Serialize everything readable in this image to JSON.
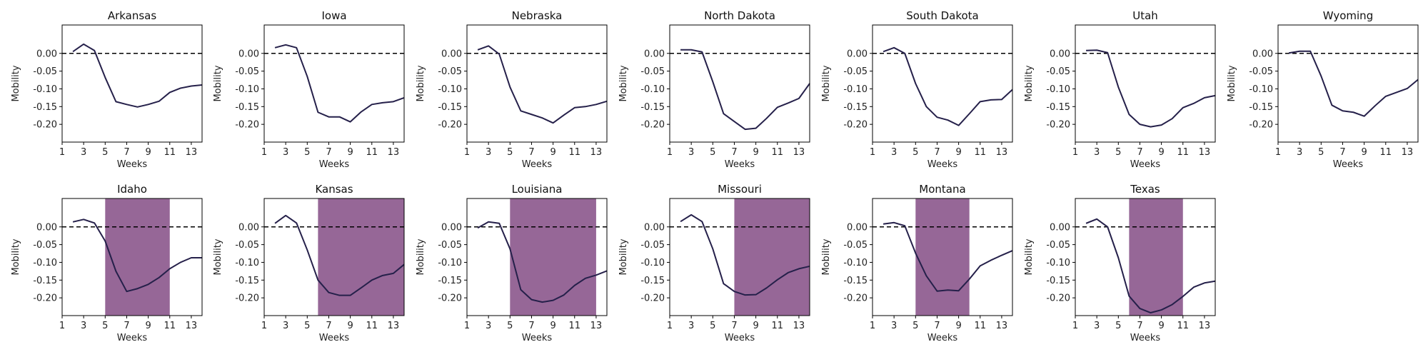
{
  "chart_data": {
    "type": "line",
    "layout": "small-multiples",
    "colors": {
      "line": "#25204a",
      "shade": "#7f4680",
      "reference_line": "#000000"
    },
    "shared_axes": {
      "xlabel": "Weeks",
      "ylabel": "Mobility",
      "xlim": [
        1,
        14
      ],
      "ylim": [
        -0.25,
        0.08
      ],
      "xticks": [
        1,
        3,
        5,
        7,
        9,
        11,
        13
      ],
      "xtick_labels": [
        "1",
        "3",
        "5",
        "7",
        "9",
        "11",
        "13"
      ],
      "yticks": [
        0.0,
        -0.05,
        -0.1,
        -0.15,
        -0.2
      ],
      "ytick_labels": [
        "0.00",
        "-0.05",
        "-0.10",
        "-0.15",
        "-0.20"
      ],
      "reference_y": 0.0,
      "grid": false
    },
    "panels": [
      {
        "title": "Arkansas",
        "x": [
          2,
          3,
          4,
          5,
          6,
          7,
          8,
          9,
          10,
          11,
          12,
          13,
          14
        ],
        "y": [
          0.005,
          0.026,
          0.008,
          -0.068,
          -0.136,
          -0.144,
          -0.151,
          -0.144,
          -0.135,
          -0.11,
          -0.098,
          -0.092,
          -0.089
        ],
        "shade": null
      },
      {
        "title": "Iowa",
        "x": [
          2,
          3,
          4,
          5,
          6,
          7,
          8,
          9,
          10,
          11,
          12,
          13,
          14
        ],
        "y": [
          0.016,
          0.024,
          0.016,
          -0.065,
          -0.166,
          -0.179,
          -0.179,
          -0.193,
          -0.165,
          -0.144,
          -0.139,
          -0.136,
          -0.125
        ],
        "shade": null
      },
      {
        "title": "Nebraska",
        "x": [
          2,
          3,
          4,
          5,
          6,
          7,
          8,
          9,
          10,
          11,
          12,
          13,
          14
        ],
        "y": [
          0.01,
          0.021,
          -0.002,
          -0.095,
          -0.162,
          -0.172,
          -0.182,
          -0.196,
          -0.174,
          -0.153,
          -0.15,
          -0.144,
          -0.135
        ],
        "shade": null
      },
      {
        "title": "North Dakota",
        "x": [
          2,
          3,
          4,
          5,
          6,
          7,
          8,
          9,
          10,
          11,
          12,
          13,
          14
        ],
        "y": [
          0.01,
          0.01,
          0.004,
          -0.08,
          -0.17,
          -0.192,
          -0.214,
          -0.211,
          -0.183,
          -0.152,
          -0.14,
          -0.127,
          -0.085
        ],
        "shade": null
      },
      {
        "title": "South Dakota",
        "x": [
          2,
          3,
          4,
          5,
          6,
          7,
          8,
          9,
          10,
          11,
          12,
          13,
          14
        ],
        "y": [
          0.005,
          0.016,
          0.0,
          -0.085,
          -0.15,
          -0.18,
          -0.188,
          -0.203,
          -0.17,
          -0.136,
          -0.131,
          -0.13,
          -0.102
        ],
        "shade": null
      },
      {
        "title": "Utah",
        "x": [
          2,
          3,
          4,
          5,
          6,
          7,
          8,
          9,
          10,
          11,
          12,
          13,
          14
        ],
        "y": [
          0.008,
          0.009,
          0.002,
          -0.095,
          -0.172,
          -0.2,
          -0.207,
          -0.202,
          -0.184,
          -0.153,
          -0.141,
          -0.125,
          -0.119
        ],
        "shade": null
      },
      {
        "title": "Wyoming",
        "x": [
          2,
          3,
          4,
          5,
          6,
          7,
          8,
          9,
          10,
          11,
          12,
          13,
          14
        ],
        "y": [
          0.001,
          0.006,
          0.006,
          -0.064,
          -0.146,
          -0.162,
          -0.166,
          -0.177,
          -0.148,
          -0.121,
          -0.11,
          -0.099,
          -0.074
        ],
        "shade": null
      },
      {
        "title": "Idaho",
        "x": [
          2,
          3,
          4,
          5,
          6,
          7,
          8,
          9,
          10,
          11,
          12,
          13,
          14
        ],
        "y": [
          0.014,
          0.021,
          0.011,
          -0.04,
          -0.125,
          -0.182,
          -0.174,
          -0.162,
          -0.143,
          -0.118,
          -0.1,
          -0.087,
          -0.087
        ],
        "shade": [
          5,
          11
        ]
      },
      {
        "title": "Kansas",
        "x": [
          2,
          3,
          4,
          5,
          6,
          7,
          8,
          9,
          10,
          11,
          12,
          13,
          14
        ],
        "y": [
          0.01,
          0.032,
          0.011,
          -0.065,
          -0.15,
          -0.185,
          -0.193,
          -0.193,
          -0.172,
          -0.15,
          -0.137,
          -0.131,
          -0.106
        ],
        "shade": [
          6,
          14
        ]
      },
      {
        "title": "Louisiana",
        "x": [
          2,
          3,
          4,
          5,
          6,
          7,
          8,
          9,
          10,
          11,
          12,
          13,
          14
        ],
        "y": [
          -0.003,
          0.014,
          0.01,
          -0.062,
          -0.177,
          -0.205,
          -0.212,
          -0.207,
          -0.192,
          -0.165,
          -0.145,
          -0.136,
          -0.124
        ],
        "shade": [
          5,
          13
        ]
      },
      {
        "title": "Missouri",
        "x": [
          2,
          3,
          4,
          5,
          6,
          7,
          8,
          9,
          10,
          11,
          12,
          13,
          14
        ],
        "y": [
          0.015,
          0.034,
          0.015,
          -0.062,
          -0.16,
          -0.182,
          -0.192,
          -0.191,
          -0.172,
          -0.149,
          -0.129,
          -0.118,
          -0.111
        ],
        "shade": [
          7,
          14
        ]
      },
      {
        "title": "Montana",
        "x": [
          2,
          3,
          4,
          5,
          6,
          7,
          8,
          9,
          10,
          11,
          12,
          13,
          14
        ],
        "y": [
          0.008,
          0.012,
          0.003,
          -0.074,
          -0.138,
          -0.181,
          -0.178,
          -0.18,
          -0.147,
          -0.11,
          -0.094,
          -0.08,
          -0.067
        ],
        "shade": [
          5,
          10
        ]
      },
      {
        "title": "Texas",
        "x": [
          2,
          3,
          4,
          5,
          6,
          7,
          8,
          9,
          10,
          11,
          12,
          13,
          14
        ],
        "y": [
          0.01,
          0.022,
          0.0,
          -0.087,
          -0.195,
          -0.23,
          -0.242,
          -0.234,
          -0.219,
          -0.196,
          -0.17,
          -0.158,
          -0.153
        ],
        "shade": [
          6,
          11
        ]
      }
    ]
  }
}
